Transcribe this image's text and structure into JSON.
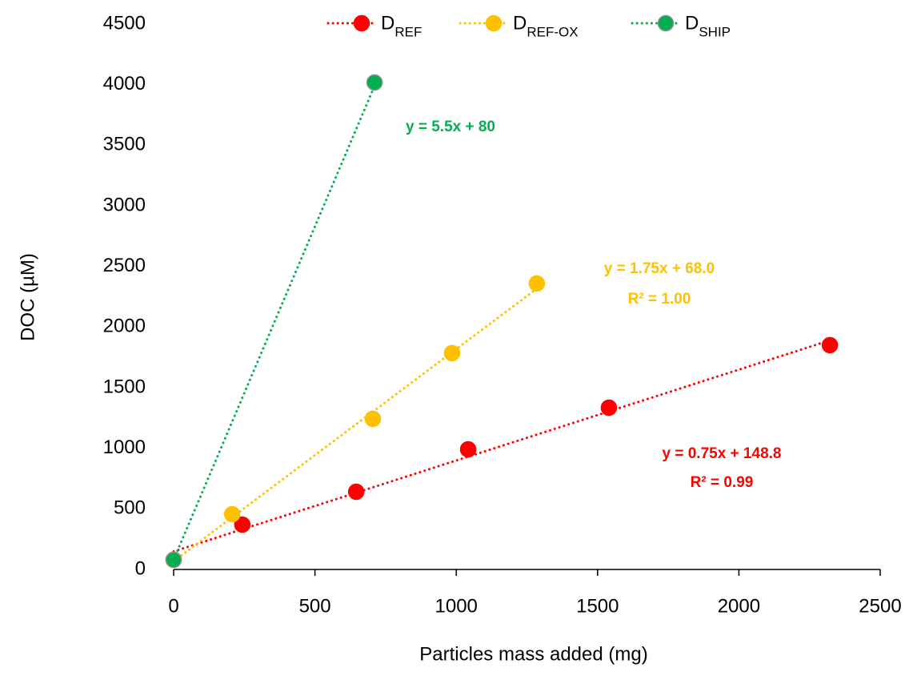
{
  "chart_data": {
    "type": "scatter",
    "x_label": "Particles mass added (mg)",
    "y_label": "DOC (µM)",
    "xlim": [
      0,
      2500
    ],
    "xticks": [
      0,
      500,
      1000,
      1500,
      2000,
      2500
    ],
    "ylim": [
      0,
      4500
    ],
    "yticks": [
      0,
      500,
      1000,
      1500,
      2000,
      2500,
      3000,
      3500,
      4000,
      4500
    ],
    "legend": "top",
    "series": [
      {
        "name": "D",
        "name_subscript": "REF",
        "color": "#ff0000",
        "x": [
          0,
          243,
          646,
          1042,
          1540,
          2322
        ],
        "values": [
          80,
          370,
          641,
          991,
          1335,
          1851
        ],
        "trendline": {
          "slope": 0.75,
          "intercept": 148.8,
          "label": "y = 0.75x + 148.8",
          "r2_label": "R² = 0.99"
        }
      },
      {
        "name": "D",
        "name_subscript": "REF-OX",
        "color": "#ffc000",
        "x": [
          0,
          207,
          705,
          985,
          1285
        ],
        "values": [
          80,
          456,
          1243,
          1785,
          2360
        ],
        "trendline": {
          "slope": 1.75,
          "intercept": 68.0,
          "label": "y = 1.75x + 68.0",
          "r2_label": "R² = 1.00"
        }
      },
      {
        "name": "D",
        "name_subscript": "SHIP",
        "color": "#00b050",
        "x": [
          0,
          711
        ],
        "values": [
          80,
          4018
        ],
        "trendline": {
          "slope": 5.5,
          "intercept": 80,
          "label": "y = 5.5x + 80"
        }
      }
    ]
  }
}
